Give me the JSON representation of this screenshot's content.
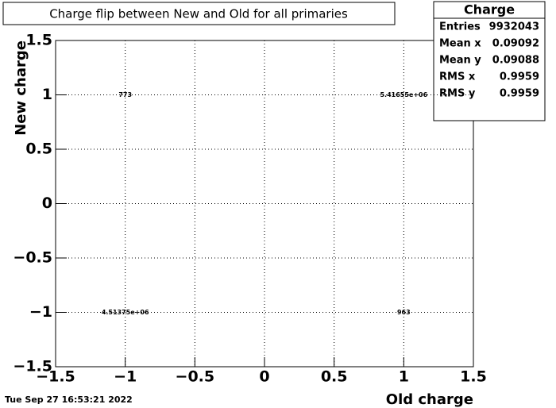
{
  "chart_data": {
    "type": "text-histogram2d",
    "title": "Charge flip between New and Old for all primaries",
    "x_label": "Old charge",
    "y_label": "New charge",
    "xlim": [
      -1.5,
      1.5
    ],
    "ylim": [
      -1.5,
      1.5
    ],
    "xticks": [
      {
        "value": -1.5,
        "label": "−1.5"
      },
      {
        "value": -1,
        "label": "−1"
      },
      {
        "value": -0.5,
        "label": "−0.5"
      },
      0,
      0.5,
      1,
      1.5
    ],
    "yticks": [
      {
        "value": -1.5,
        "label": "−1.5"
      },
      {
        "value": -1,
        "label": "−1"
      },
      {
        "value": -0.5,
        "label": "−0.5"
      },
      0,
      0.5,
      1,
      1.5
    ],
    "grid": true,
    "x": [
      -1,
      1,
      -1,
      1
    ],
    "y": [
      1,
      1,
      -1,
      -1
    ],
    "values": [
      773,
      5416550,
      4513750,
      963
    ],
    "value_labels": [
      "773",
      "5.41655e+06",
      "4.51375e+06",
      "963"
    ],
    "stats": {
      "title": "Charge",
      "rows": [
        {
          "name": "Entries",
          "value": 9932043
        },
        {
          "name": "Mean x",
          "value": 0.09092
        },
        {
          "name": "Mean y",
          "value": 0.09088
        },
        {
          "name": "RMS x",
          "value": 0.9959
        },
        {
          "name": "RMS y",
          "value": 0.9959
        }
      ]
    },
    "timestamp": "Tue Sep 27 16:53:21 2022"
  }
}
